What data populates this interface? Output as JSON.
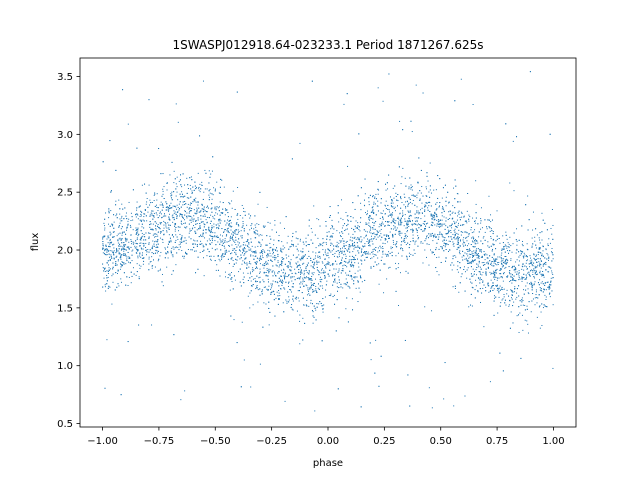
{
  "chart_data": {
    "type": "scatter",
    "title": "1SWASPJ012918.64-023233.1 Period 1871267.625s",
    "xlabel": "phase",
    "ylabel": "flux",
    "xlim": [
      -1.1,
      1.1
    ],
    "ylim": [
      0.47,
      3.66
    ],
    "xticks": [
      -1.0,
      -0.75,
      -0.5,
      -0.25,
      0.0,
      0.25,
      0.5,
      0.75,
      1.0
    ],
    "xtick_labels": [
      "−1.00",
      "−0.75",
      "−0.50",
      "−0.25",
      "0.00",
      "0.25",
      "0.50",
      "0.75",
      "1.00"
    ],
    "yticks": [
      0.5,
      1.0,
      1.5,
      2.0,
      2.5,
      3.0,
      3.5
    ],
    "ytick_labels": [
      "0.5",
      "1.0",
      "1.5",
      "2.0",
      "2.5",
      "3.0",
      "3.5"
    ],
    "grid": false,
    "marker_color": "#1f77b4",
    "series": [
      {
        "x_range": [
          -1.0,
          1.0
        ],
        "trend": {
          "phase": [
            -1.0,
            -0.9,
            -0.8,
            -0.7,
            -0.6,
            -0.5,
            -0.4,
            -0.3,
            -0.2,
            -0.1,
            0.0,
            0.1,
            0.2,
            0.3,
            0.4,
            0.5,
            0.6,
            0.7,
            0.8,
            0.9,
            1.0
          ],
          "flux": [
            1.95,
            2.05,
            2.15,
            2.25,
            2.3,
            2.2,
            2.05,
            1.9,
            1.8,
            1.8,
            1.85,
            1.95,
            2.15,
            2.25,
            2.3,
            2.2,
            2.05,
            1.9,
            1.8,
            1.8,
            1.85
          ]
        },
        "scatter_sigma": 0.18,
        "flux_range": [
          0.6,
          3.55
        ]
      }
    ]
  }
}
